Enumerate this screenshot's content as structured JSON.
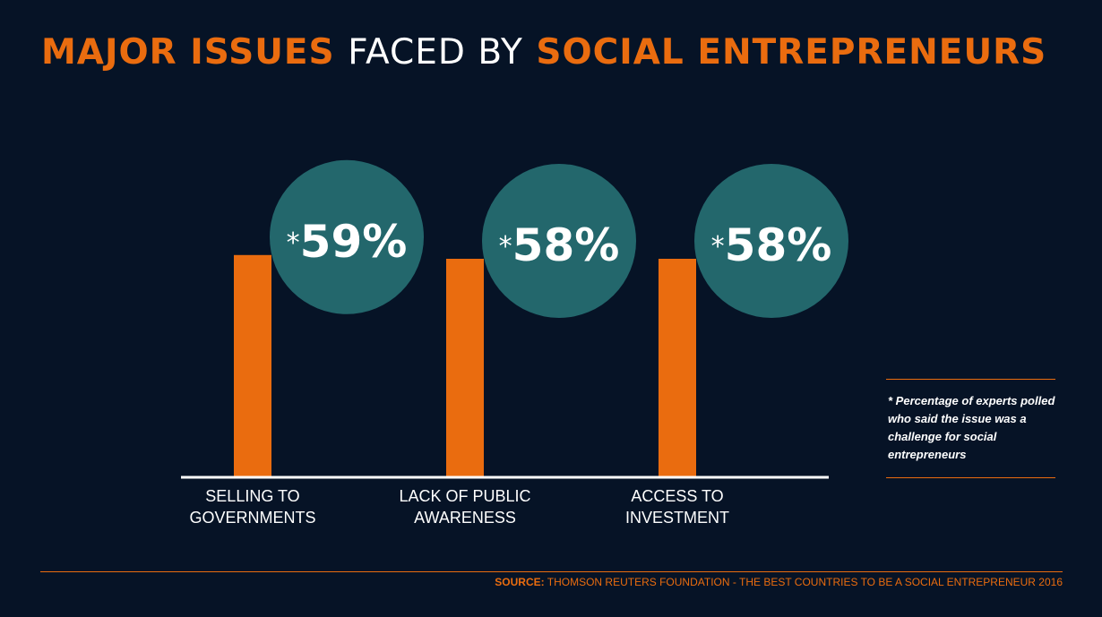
{
  "title": {
    "part1": "MAJOR ISSUES",
    "part2": "FACED BY",
    "part3": "SOCIAL ENTREPRENEURS"
  },
  "chart_data": {
    "type": "bar",
    "categories": [
      [
        "SELLING TO",
        "GOVERNMENTS"
      ],
      [
        "LACK OF PUBLIC",
        "AWARENESS"
      ],
      [
        "ACCESS TO",
        "INVESTMENT"
      ]
    ],
    "values": [
      59,
      58,
      58
    ],
    "value_labels": [
      "59%",
      "58%",
      "58%"
    ],
    "value_prefix": "*",
    "unit": "%",
    "ylim": [
      0,
      100
    ],
    "grid": false,
    "legend": "none"
  },
  "note": "* Percentage of experts polled who said the issue was a challenge for social entrepreneurs",
  "source": {
    "label": "SOURCE:",
    "text": "THOMSON REUTERS FOUNDATION - THE BEST COUNTRIES TO BE A SOCIAL ENTREPRENEUR 2016"
  },
  "colors": {
    "background": "#061326",
    "bar": "#ea6c0f",
    "bubble": "#2a7a7c",
    "axis": "#ffffff",
    "text": "#ffffff",
    "accent": "#ea6c0f"
  }
}
